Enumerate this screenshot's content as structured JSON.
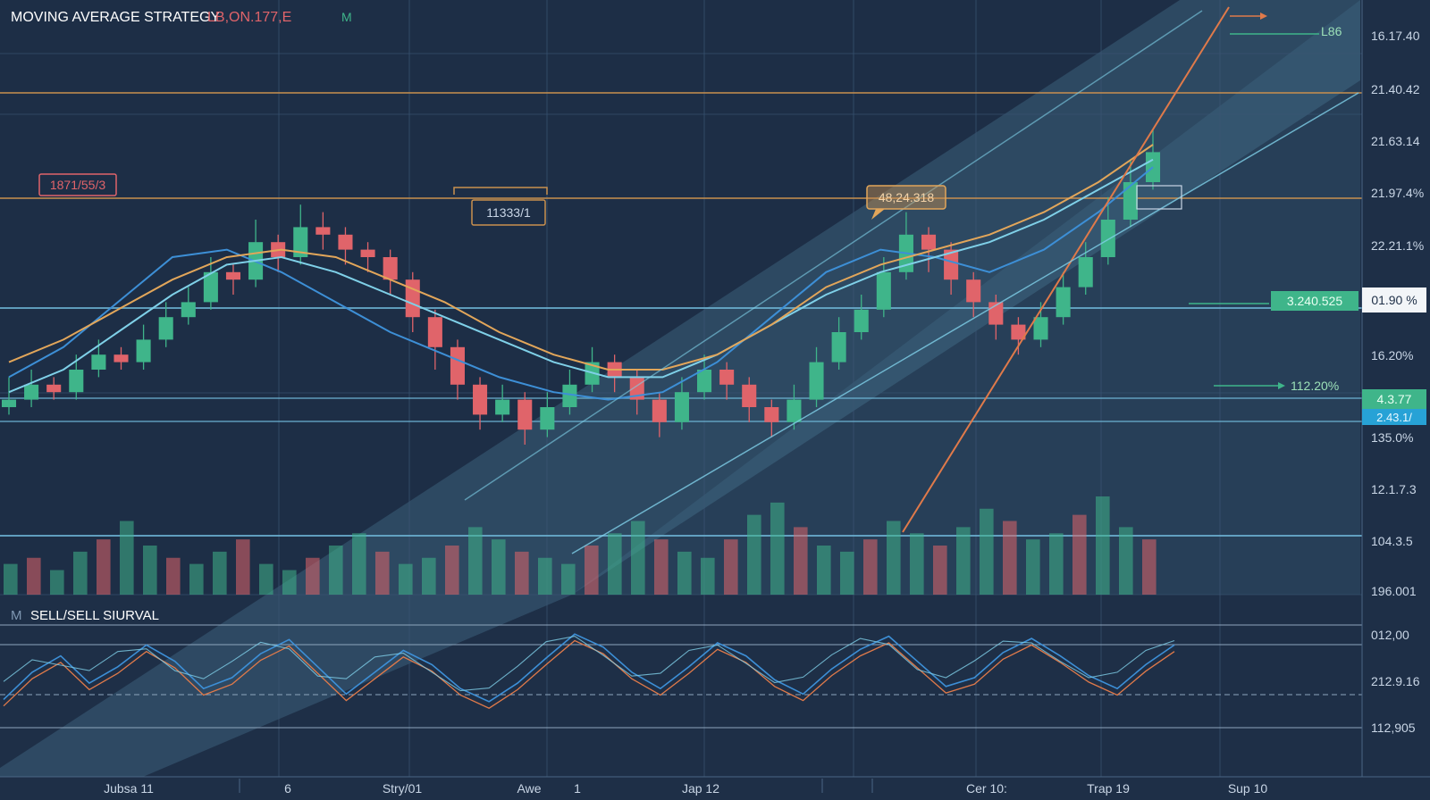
{
  "header": {
    "title": "MOVING AVERAGE STRATEGY",
    "ticker": "LB,ON.177,E",
    "mark": "M"
  },
  "indicator": {
    "icon_label": "M",
    "title": "SELL/SELL SIURVAL"
  },
  "colors": {
    "background": "#1e2f47",
    "up": "#3fb58a",
    "down": "#e0646a",
    "ma_fast": "#3d8fd6",
    "ma_mid": "#7fd0e8",
    "ma_slow": "#e2a65a",
    "trend_orange": "#e07a4a",
    "hline_orange": "#c9904f",
    "hline_blue": "#6fb8d8",
    "channel": "#5a8fae"
  },
  "annotations": {
    "label_left": "1871/55/3",
    "label_mid": "11333/1",
    "label_callout": "48,24.318",
    "label_top_right": "L86",
    "label_arrow_value": "112.20%"
  },
  "price_axis": {
    "labels": [
      "16.17.40",
      "21.40.42",
      "21.63.14",
      "21.97.4%",
      "22.21.1%",
      "16.20%",
      "135.0%",
      "12.1.7.3",
      "104.3.5",
      "196.001"
    ],
    "tag_white": "01.90 %",
    "tag_green_wide": "3.240.525",
    "tag_green": "4.3.77",
    "tag_cyan": "2.43.1/"
  },
  "indicator_axis": {
    "labels": [
      "012,00",
      "212.9.16",
      "112,905"
    ]
  },
  "date_axis": {
    "labels": [
      "Jubsa 11",
      "6",
      "Stry/01",
      "Awe",
      "1",
      "Jap 12",
      "Cer 10:",
      "Trap 19",
      "Sup 10"
    ]
  },
  "chart_data": {
    "type": "line",
    "title": "MOVING AVERAGE STRATEGY",
    "series": [
      {
        "kind": "candlestick",
        "values": [
          [
            10,
            11,
            14,
            9
          ],
          [
            11,
            13,
            15,
            10
          ],
          [
            13,
            12,
            14,
            11
          ],
          [
            12,
            15,
            17,
            11
          ],
          [
            15,
            17,
            19,
            14
          ],
          [
            17,
            16,
            18,
            15
          ],
          [
            16,
            19,
            21,
            15
          ],
          [
            19,
            22,
            24,
            18
          ],
          [
            22,
            24,
            26,
            21
          ],
          [
            24,
            28,
            30,
            23
          ],
          [
            28,
            27,
            29,
            25
          ],
          [
            27,
            32,
            35,
            26
          ],
          [
            32,
            30,
            33,
            28
          ],
          [
            30,
            34,
            37,
            29
          ],
          [
            34,
            33,
            36,
            31
          ],
          [
            33,
            31,
            34,
            29
          ],
          [
            31,
            30,
            32,
            28
          ],
          [
            30,
            27,
            31,
            25
          ],
          [
            27,
            22,
            28,
            20
          ],
          [
            22,
            18,
            23,
            15
          ],
          [
            18,
            13,
            19,
            11
          ],
          [
            13,
            9,
            14,
            7
          ],
          [
            9,
            11,
            13,
            8
          ],
          [
            11,
            7,
            12,
            5
          ],
          [
            7,
            10,
            12,
            6
          ],
          [
            10,
            13,
            15,
            9
          ],
          [
            13,
            16,
            18,
            12
          ],
          [
            16,
            14,
            17,
            12
          ],
          [
            14,
            11,
            15,
            9
          ],
          [
            11,
            8,
            12,
            6
          ],
          [
            8,
            12,
            14,
            7
          ],
          [
            12,
            15,
            17,
            11
          ],
          [
            15,
            13,
            16,
            11
          ],
          [
            13,
            10,
            14,
            8
          ],
          [
            10,
            8,
            11,
            6
          ],
          [
            8,
            11,
            13,
            7
          ],
          [
            11,
            16,
            18,
            10
          ],
          [
            16,
            20,
            22,
            15
          ],
          [
            20,
            23,
            25,
            19
          ],
          [
            23,
            28,
            30,
            22
          ],
          [
            28,
            33,
            36,
            27
          ],
          [
            33,
            31,
            34,
            28
          ],
          [
            31,
            27,
            32,
            25
          ],
          [
            27,
            24,
            28,
            22
          ],
          [
            24,
            21,
            25,
            19
          ],
          [
            21,
            19,
            22,
            17
          ],
          [
            19,
            22,
            24,
            18
          ],
          [
            22,
            26,
            28,
            21
          ],
          [
            26,
            30,
            32,
            25
          ],
          [
            30,
            35,
            38,
            29
          ],
          [
            35,
            40,
            43,
            34
          ],
          [
            40,
            44,
            47,
            39
          ]
        ],
        "note": "OHLC, approximate"
      },
      {
        "name": "",
        "values": [
          14,
          18,
          24,
          30,
          31,
          28,
          24,
          20,
          17,
          14,
          12,
          11,
          12,
          16,
          22,
          28,
          31,
          30,
          28,
          31,
          36,
          42
        ]
      },
      {
        "name": "",
        "values": [
          12,
          15,
          20,
          25,
          29,
          30,
          28,
          25,
          22,
          19,
          16,
          14,
          14,
          17,
          21,
          25,
          28,
          30,
          32,
          35,
          39,
          43
        ]
      },
      {
        "name": "",
        "values": [
          16,
          19,
          23,
          27,
          30,
          31,
          30,
          27,
          24,
          20,
          17,
          15,
          15,
          17,
          21,
          26,
          29,
          31,
          33,
          36,
          40,
          45
        ]
      }
    ],
    "volume": [
      5,
      6,
      4,
      7,
      9,
      12,
      8,
      6,
      5,
      7,
      9,
      5,
      4,
      6,
      8,
      10,
      7,
      5,
      6,
      8,
      11,
      9,
      7,
      6,
      5,
      8,
      10,
      12,
      9,
      7,
      6,
      9,
      13,
      15,
      11,
      8,
      7,
      9,
      12,
      10,
      8,
      11,
      14,
      12,
      9,
      10,
      13,
      16,
      11,
      9
    ],
    "oscillator": [
      30,
      55,
      70,
      45,
      60,
      80,
      65,
      40,
      50,
      72,
      85,
      60,
      35,
      55,
      75,
      62,
      40,
      28,
      45,
      68,
      90,
      78,
      55,
      40,
      60,
      82,
      70,
      48,
      35,
      58,
      76,
      88,
      65,
      42,
      50,
      73,
      86,
      70,
      52,
      40,
      62,
      80
    ],
    "ylim": [
      0,
      50
    ],
    "grid": true,
    "legend": "none"
  }
}
